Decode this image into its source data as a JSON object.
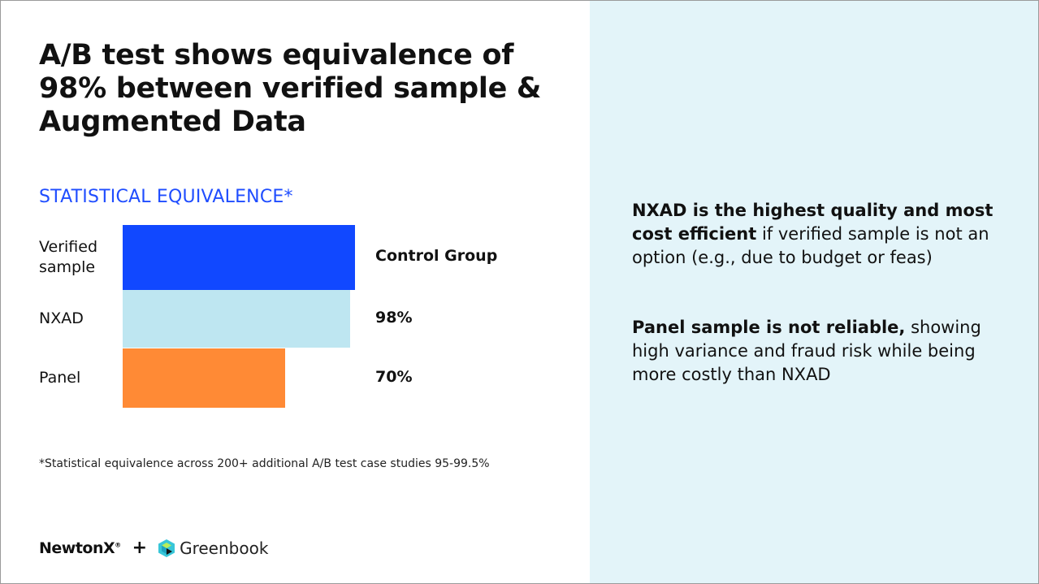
{
  "title": "A/B test shows equivalence of 98% between verified sample & Augmented Data",
  "chart_data": {
    "type": "bar",
    "orientation": "horizontal",
    "title": "STATISTICAL EQUIVALENCE*",
    "categories": [
      "Verified sample",
      "NXAD",
      "Panel"
    ],
    "values": [
      100,
      98,
      70
    ],
    "value_labels": [
      "Control Group",
      "98%",
      "70%"
    ],
    "colors": [
      "#1148ff",
      "#bee6f1",
      "#ff8a35"
    ],
    "xlim": [
      0,
      100
    ],
    "grid": false
  },
  "footnote": "*Statistical equivalence across 200+ additional A/B test case studies 95-99.5%",
  "logos": {
    "newtonx": "NewtonX",
    "registered": "®",
    "plus": "+",
    "greenbook": "Greenbook"
  },
  "right": {
    "p1_bold": "NXAD is the highest quality and most cost efficient",
    "p1_rest": " if verified sample is not an option (e.g., due to budget or feas)",
    "p2_bold": "Panel sample is not reliable,",
    "p2_rest": " showing high variance and fraud risk while being more costly than NXAD"
  }
}
